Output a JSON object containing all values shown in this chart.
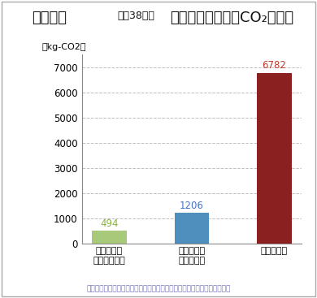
{
  "title_main": "木造住宅",
  "title_sub": "（約38坪）",
  "ylabel": "（kg-CO2）",
  "categories": [
    "地域材住宅\n（地産地消）",
    "国産材住宅\nの国内平均",
    "欧州材住宅"
  ],
  "values": [
    494,
    1206,
    6782
  ],
  "bar_colors": [
    "#a8c97a",
    "#4f8fbe",
    "#8b2020"
  ],
  "value_colors": [
    "#8db040",
    "#4472c4",
    "#c0392b"
  ],
  "ylim": [
    0,
    7500
  ],
  "yticks": [
    0,
    1000,
    2000,
    3000,
    4000,
    5000,
    6000,
    7000
  ],
  "footnote": "ウッドマイルズ研究会「ウッドマイルズレポート」のデータをもとに編集",
  "footnote_color": "#7070bb",
  "bg_color": "#ffffff",
  "border_color": "#aaaaaa"
}
